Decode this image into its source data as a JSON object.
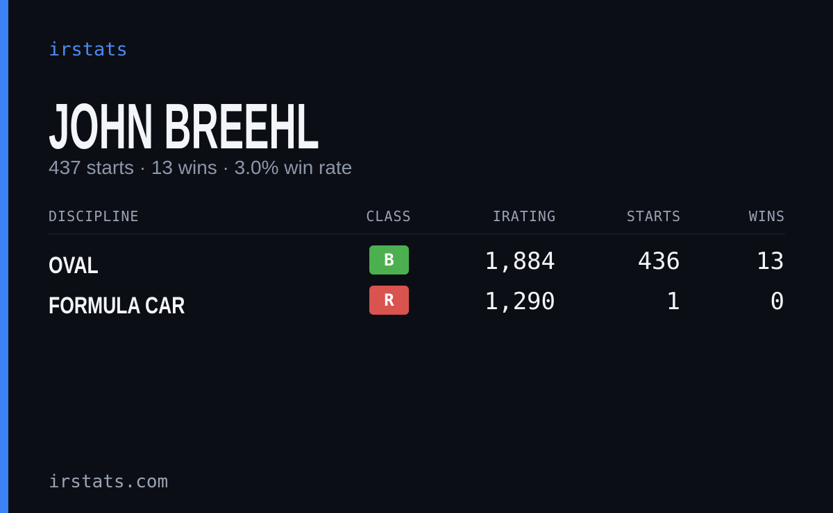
{
  "brand": "irstats",
  "name": "JOHN BREEHL",
  "summary": "437 starts · 13 wins · 3.0% win rate",
  "table": {
    "headers": [
      "DISCIPLINE",
      "CLASS",
      "IRATING",
      "STARTS",
      "WINS"
    ],
    "rows": [
      [
        "OVAL",
        "B",
        "1,884",
        "436",
        "13"
      ],
      [
        "FORMULA CAR",
        "R",
        "1,290",
        "1",
        "0"
      ]
    ]
  },
  "footer": "irstats.com"
}
